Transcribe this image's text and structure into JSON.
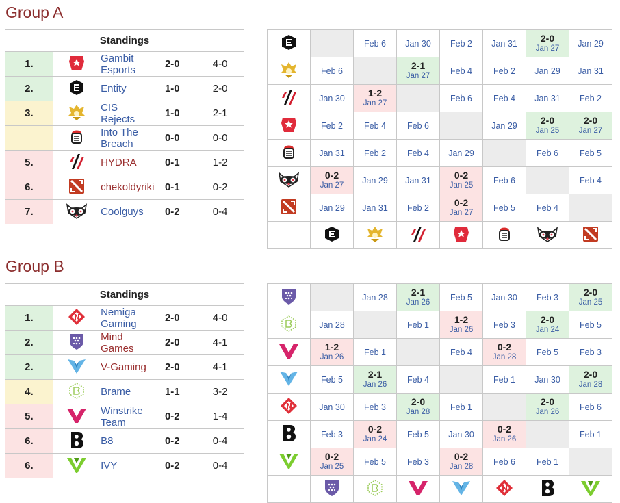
{
  "groups": [
    {
      "title": "Group A",
      "standings_header": "Standings",
      "standings": [
        {
          "rank": "1.",
          "logo": "gambit-logo",
          "name": "Gambit Esports",
          "match": "2-0",
          "games": "4-0",
          "color": "green",
          "link": "blue"
        },
        {
          "rank": "2.",
          "logo": "entity-logo",
          "name": "Entity",
          "match": "1-0",
          "games": "2-0",
          "color": "green",
          "link": "blue"
        },
        {
          "rank": "3.",
          "logo": "cis-rejects-logo",
          "name": "CIS Rejects",
          "match": "1-0",
          "games": "2-1",
          "color": "yellow",
          "link": "blue"
        },
        {
          "rank": "",
          "logo": "into-the-breach-logo",
          "name": "Into The Breach",
          "match": "0-0",
          "games": "0-0",
          "color": "yellow",
          "link": "blue"
        },
        {
          "rank": "5.",
          "logo": "hydra-logo",
          "name": "HYDRA",
          "match": "0-1",
          "games": "1-2",
          "color": "red",
          "link": "red"
        },
        {
          "rank": "6.",
          "logo": "dota-logo",
          "name": "chekoldyriki",
          "match": "0-1",
          "games": "0-2",
          "color": "red",
          "link": "red"
        },
        {
          "rank": "7.",
          "logo": "coolguys-logo",
          "name": "Coolguys",
          "match": "0-2",
          "games": "0-4",
          "color": "red",
          "link": "blue"
        }
      ],
      "matrix_rows": [
        "entity-logo",
        "cis-rejects-logo",
        "hydra-logo",
        "gambit-logo",
        "into-the-breach-logo",
        "coolguys-logo",
        "dota-logo"
      ],
      "matrix_cols": [
        "entity-logo",
        "cis-rejects-logo",
        "hydra-logo",
        "gambit-logo",
        "into-the-breach-logo",
        "coolguys-logo",
        "dota-logo"
      ],
      "matrix": [
        [
          {
            "t": "d"
          },
          {
            "t": "n",
            "date": "Feb 6"
          },
          {
            "t": "n",
            "date": "Jan 30"
          },
          {
            "t": "n",
            "date": "Feb 2"
          },
          {
            "t": "n",
            "date": "Jan 31"
          },
          {
            "t": "w",
            "score": "2-0",
            "date": "Jan 27"
          },
          {
            "t": "n",
            "date": "Jan 29"
          }
        ],
        [
          {
            "t": "n",
            "date": "Feb 6"
          },
          {
            "t": "d"
          },
          {
            "t": "w",
            "score": "2-1",
            "date": "Jan 27"
          },
          {
            "t": "n",
            "date": "Feb 4"
          },
          {
            "t": "n",
            "date": "Feb 2"
          },
          {
            "t": "n",
            "date": "Jan 29"
          },
          {
            "t": "n",
            "date": "Jan 31"
          }
        ],
        [
          {
            "t": "n",
            "date": "Jan 30"
          },
          {
            "t": "l",
            "score": "1-2",
            "date": "Jan 27"
          },
          {
            "t": "d"
          },
          {
            "t": "n",
            "date": "Feb 6"
          },
          {
            "t": "n",
            "date": "Feb 4"
          },
          {
            "t": "n",
            "date": "Jan 31"
          },
          {
            "t": "n",
            "date": "Feb 2"
          }
        ],
        [
          {
            "t": "n",
            "date": "Feb 2"
          },
          {
            "t": "n",
            "date": "Feb 4"
          },
          {
            "t": "n",
            "date": "Feb 6"
          },
          {
            "t": "d"
          },
          {
            "t": "n",
            "date": "Jan 29"
          },
          {
            "t": "w",
            "score": "2-0",
            "date": "Jan 25"
          },
          {
            "t": "w",
            "score": "2-0",
            "date": "Jan 27"
          }
        ],
        [
          {
            "t": "n",
            "date": "Jan 31"
          },
          {
            "t": "n",
            "date": "Feb 2"
          },
          {
            "t": "n",
            "date": "Feb 4"
          },
          {
            "t": "n",
            "date": "Jan 29"
          },
          {
            "t": "d"
          },
          {
            "t": "n",
            "date": "Feb 6"
          },
          {
            "t": "n",
            "date": "Feb 5"
          }
        ],
        [
          {
            "t": "l",
            "score": "0-2",
            "date": "Jan 27"
          },
          {
            "t": "n",
            "date": "Jan 29"
          },
          {
            "t": "n",
            "date": "Jan 31"
          },
          {
            "t": "l",
            "score": "0-2",
            "date": "Jan 25"
          },
          {
            "t": "n",
            "date": "Feb 6"
          },
          {
            "t": "d"
          },
          {
            "t": "n",
            "date": "Feb 4"
          }
        ],
        [
          {
            "t": "n",
            "date": "Jan 29"
          },
          {
            "t": "n",
            "date": "Jan 31"
          },
          {
            "t": "n",
            "date": "Feb 2"
          },
          {
            "t": "l",
            "score": "0-2",
            "date": "Jan 27"
          },
          {
            "t": "n",
            "date": "Feb 5"
          },
          {
            "t": "n",
            "date": "Feb 4"
          },
          {
            "t": "d"
          }
        ]
      ]
    },
    {
      "title": "Group B",
      "standings_header": "Standings",
      "standings": [
        {
          "rank": "1.",
          "logo": "nemiga-logo",
          "name": "Nemiga Gaming",
          "match": "2-0",
          "games": "4-0",
          "color": "green",
          "link": "blue"
        },
        {
          "rank": "2.",
          "logo": "mind-games-logo",
          "name": "Mind Games",
          "match": "2-0",
          "games": "4-1",
          "color": "green",
          "link": "red"
        },
        {
          "rank": "2.",
          "logo": "v-gaming-logo",
          "name": "V-Gaming",
          "match": "2-0",
          "games": "4-1",
          "color": "green",
          "link": "red"
        },
        {
          "rank": "4.",
          "logo": "brame-logo",
          "name": "Brame",
          "match": "1-1",
          "games": "3-2",
          "color": "yellow",
          "link": "blue"
        },
        {
          "rank": "5.",
          "logo": "winstrike-logo",
          "name": "Winstrike Team",
          "match": "0-2",
          "games": "1-4",
          "color": "red",
          "link": "blue"
        },
        {
          "rank": "6.",
          "logo": "b8-logo",
          "name": "B8",
          "match": "0-2",
          "games": "0-4",
          "color": "red",
          "link": "blue"
        },
        {
          "rank": "6.",
          "logo": "ivy-logo",
          "name": "IVY",
          "match": "0-2",
          "games": "0-4",
          "color": "red",
          "link": "blue"
        }
      ],
      "matrix_rows": [
        "mind-games-logo",
        "brame-logo",
        "winstrike-logo",
        "v-gaming-logo",
        "nemiga-logo",
        "b8-logo",
        "ivy-logo"
      ],
      "matrix_cols": [
        "mind-games-logo",
        "brame-logo",
        "winstrike-logo",
        "v-gaming-logo",
        "nemiga-logo",
        "b8-logo",
        "ivy-logo"
      ],
      "matrix": [
        [
          {
            "t": "d"
          },
          {
            "t": "n",
            "date": "Jan 28"
          },
          {
            "t": "w",
            "score": "2-1",
            "date": "Jan 26"
          },
          {
            "t": "n",
            "date": "Feb 5"
          },
          {
            "t": "n",
            "date": "Jan 30"
          },
          {
            "t": "n",
            "date": "Feb 3"
          },
          {
            "t": "w",
            "score": "2-0",
            "date": "Jan 25"
          }
        ],
        [
          {
            "t": "n",
            "date": "Jan 28"
          },
          {
            "t": "d"
          },
          {
            "t": "n",
            "date": "Feb 1"
          },
          {
            "t": "l",
            "score": "1-2",
            "date": "Jan 26"
          },
          {
            "t": "n",
            "date": "Feb 3"
          },
          {
            "t": "w",
            "score": "2-0",
            "date": "Jan 24"
          },
          {
            "t": "n",
            "date": "Feb 5"
          }
        ],
        [
          {
            "t": "l",
            "score": "1-2",
            "date": "Jan 26"
          },
          {
            "t": "n",
            "date": "Feb 1"
          },
          {
            "t": "d"
          },
          {
            "t": "n",
            "date": "Feb 4"
          },
          {
            "t": "l",
            "score": "0-2",
            "date": "Jan 28"
          },
          {
            "t": "n",
            "date": "Feb 5"
          },
          {
            "t": "n",
            "date": "Feb 3"
          }
        ],
        [
          {
            "t": "n",
            "date": "Feb 5"
          },
          {
            "t": "w",
            "score": "2-1",
            "date": "Jan 26"
          },
          {
            "t": "n",
            "date": "Feb 4"
          },
          {
            "t": "d"
          },
          {
            "t": "n",
            "date": "Feb 1"
          },
          {
            "t": "n",
            "date": "Jan 30"
          },
          {
            "t": "w",
            "score": "2-0",
            "date": "Jan 28"
          }
        ],
        [
          {
            "t": "n",
            "date": "Jan 30"
          },
          {
            "t": "n",
            "date": "Feb 3"
          },
          {
            "t": "w",
            "score": "2-0",
            "date": "Jan 28"
          },
          {
            "t": "n",
            "date": "Feb 1"
          },
          {
            "t": "d"
          },
          {
            "t": "w",
            "score": "2-0",
            "date": "Jan 26"
          },
          {
            "t": "n",
            "date": "Feb 6"
          }
        ],
        [
          {
            "t": "n",
            "date": "Feb 3"
          },
          {
            "t": "l",
            "score": "0-2",
            "date": "Jan 24"
          },
          {
            "t": "n",
            "date": "Feb 5"
          },
          {
            "t": "n",
            "date": "Jan 30"
          },
          {
            "t": "l",
            "score": "0-2",
            "date": "Jan 26"
          },
          {
            "t": "d"
          },
          {
            "t": "n",
            "date": "Feb 1"
          }
        ],
        [
          {
            "t": "l",
            "score": "0-2",
            "date": "Jan 25"
          },
          {
            "t": "n",
            "date": "Feb 5"
          },
          {
            "t": "n",
            "date": "Feb 3"
          },
          {
            "t": "l",
            "score": "0-2",
            "date": "Jan 28"
          },
          {
            "t": "n",
            "date": "Feb 6"
          },
          {
            "t": "n",
            "date": "Feb 1"
          },
          {
            "t": "d"
          }
        ]
      ]
    }
  ]
}
